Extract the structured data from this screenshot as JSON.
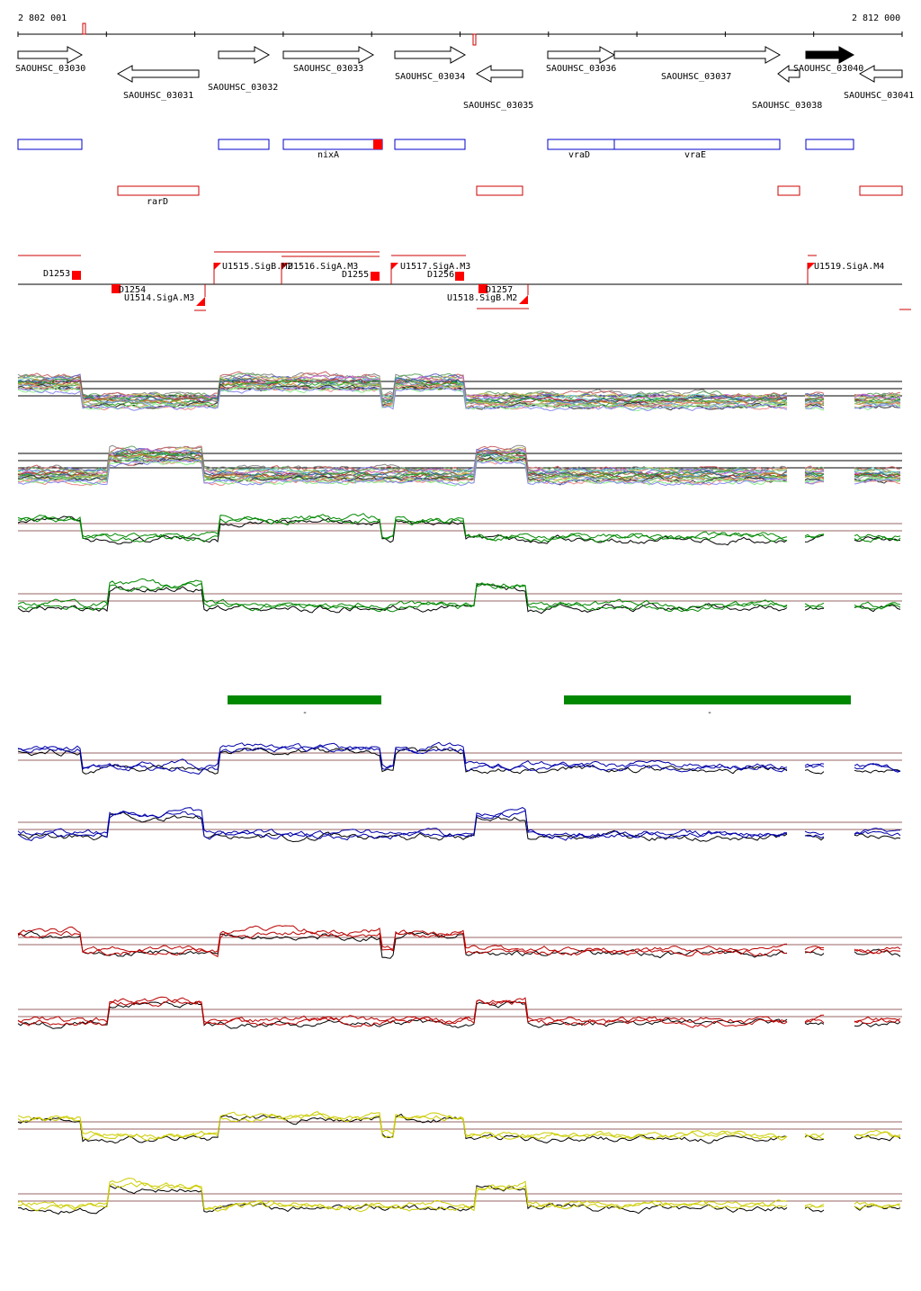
{
  "scale": {
    "start": "2 802 001",
    "end": "2 812 000"
  },
  "genes": [
    "SAOUHSC_03030",
    "SAOUHSC_03031",
    "SAOUHSC_03032",
    "SAOUHSC_03033",
    "SAOUHSC_03034",
    "SAOUHSC_03035",
    "SAOUHSC_03036",
    "SAOUHSC_03037",
    "SAOUHSC_03038",
    "SAOUHSC_03040",
    "SAOUHSC_03041"
  ],
  "gene_names": [
    "nixA",
    "vraD",
    "vraE",
    "rarD"
  ],
  "features": [
    "D1253",
    "D1254",
    "U1514.SigA.M3",
    "U1515.SigB.M2",
    "U1516.SigA.M3",
    "D1255",
    "U1517.SigA.M3",
    "D1256",
    "D1257",
    "U1518.SigB.M2",
    "U1519.SigA.M4"
  ],
  "markers": [
    "-",
    "-"
  ]
}
